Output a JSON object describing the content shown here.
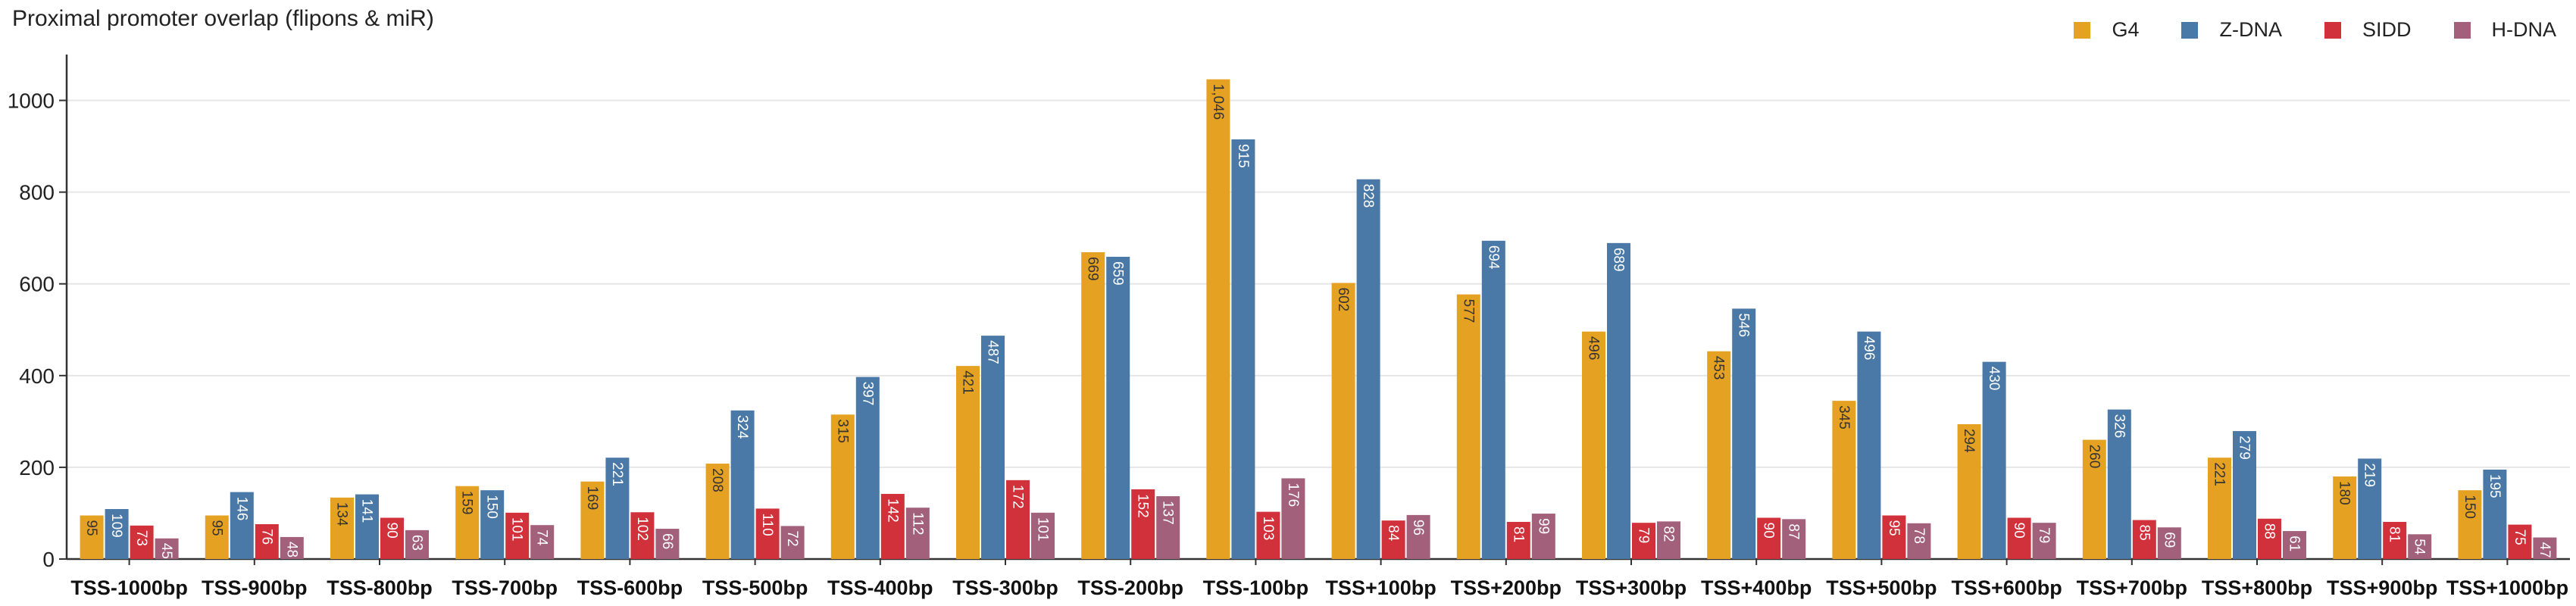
{
  "chart_data": {
    "type": "bar",
    "title": "Proximal promoter overlap (flipons & miR)",
    "xlabel": "",
    "ylabel": "",
    "ylim": [
      0,
      1100
    ],
    "yticks": [
      0,
      200,
      400,
      600,
      800,
      1000
    ],
    "grid": "horizontal",
    "legend_position": "top-right",
    "categories": [
      "TSS-1000bp",
      "TSS-900bp",
      "TSS-800bp",
      "TSS-700bp",
      "TSS-600bp",
      "TSS-500bp",
      "TSS-400bp",
      "TSS-300bp",
      "TSS-200bp",
      "TSS-100bp",
      "TSS+100bp",
      "TSS+200bp",
      "TSS+300bp",
      "TSS+400bp",
      "TSS+500bp",
      "TSS+600bp",
      "TSS+700bp",
      "TSS+800bp",
      "TSS+900bp",
      "TSS+1000bp"
    ],
    "series": [
      {
        "name": "G4",
        "color": "#E5A122",
        "label_color": "#333333",
        "values": [
          95,
          95,
          134,
          159,
          169,
          208,
          315,
          421,
          669,
          1046,
          602,
          577,
          496,
          453,
          345,
          294,
          260,
          221,
          180,
          150
        ],
        "labels": [
          "95",
          "95",
          "134",
          "159",
          "169",
          "208",
          "315",
          "421",
          "669",
          "1,046",
          "602",
          "577",
          "496",
          "453",
          "345",
          "294",
          "260",
          "221",
          "180",
          "150"
        ]
      },
      {
        "name": "Z-DNA",
        "color": "#4A79A7",
        "label_color": "#ffffff",
        "values": [
          109,
          146,
          141,
          150,
          221,
          324,
          397,
          487,
          659,
          915,
          828,
          694,
          689,
          546,
          496,
          430,
          326,
          279,
          219,
          195
        ],
        "labels": [
          "109",
          "146",
          "141",
          "150",
          "221",
          "324",
          "397",
          "487",
          "659",
          "915",
          "828",
          "694",
          "689",
          "546",
          "496",
          "430",
          "326",
          "279",
          "219",
          "195"
        ]
      },
      {
        "name": "SIDD",
        "color": "#D1313A",
        "label_color": "#ffffff",
        "values": [
          73,
          76,
          90,
          101,
          102,
          110,
          142,
          172,
          152,
          103,
          84,
          81,
          79,
          90,
          95,
          90,
          85,
          88,
          81,
          75
        ],
        "labels": [
          "73",
          "76",
          "90",
          "101",
          "102",
          "110",
          "142",
          "172",
          "152",
          "103",
          "84",
          "81",
          "79",
          "90",
          "95",
          "90",
          "85",
          "88",
          "81",
          "75"
        ]
      },
      {
        "name": "H-DNA",
        "color": "#A2607A",
        "label_color": "#ffffff",
        "values": [
          45,
          48,
          63,
          74,
          66,
          72,
          112,
          101,
          137,
          176,
          96,
          99,
          82,
          87,
          78,
          79,
          69,
          61,
          54,
          47
        ],
        "labels": [
          "45",
          "48",
          "63",
          "74",
          "66",
          "72",
          "112",
          "101",
          "137",
          "176",
          "96",
          "99",
          "82",
          "87",
          "78",
          "79",
          "69",
          "61",
          "54",
          "47"
        ]
      }
    ]
  }
}
